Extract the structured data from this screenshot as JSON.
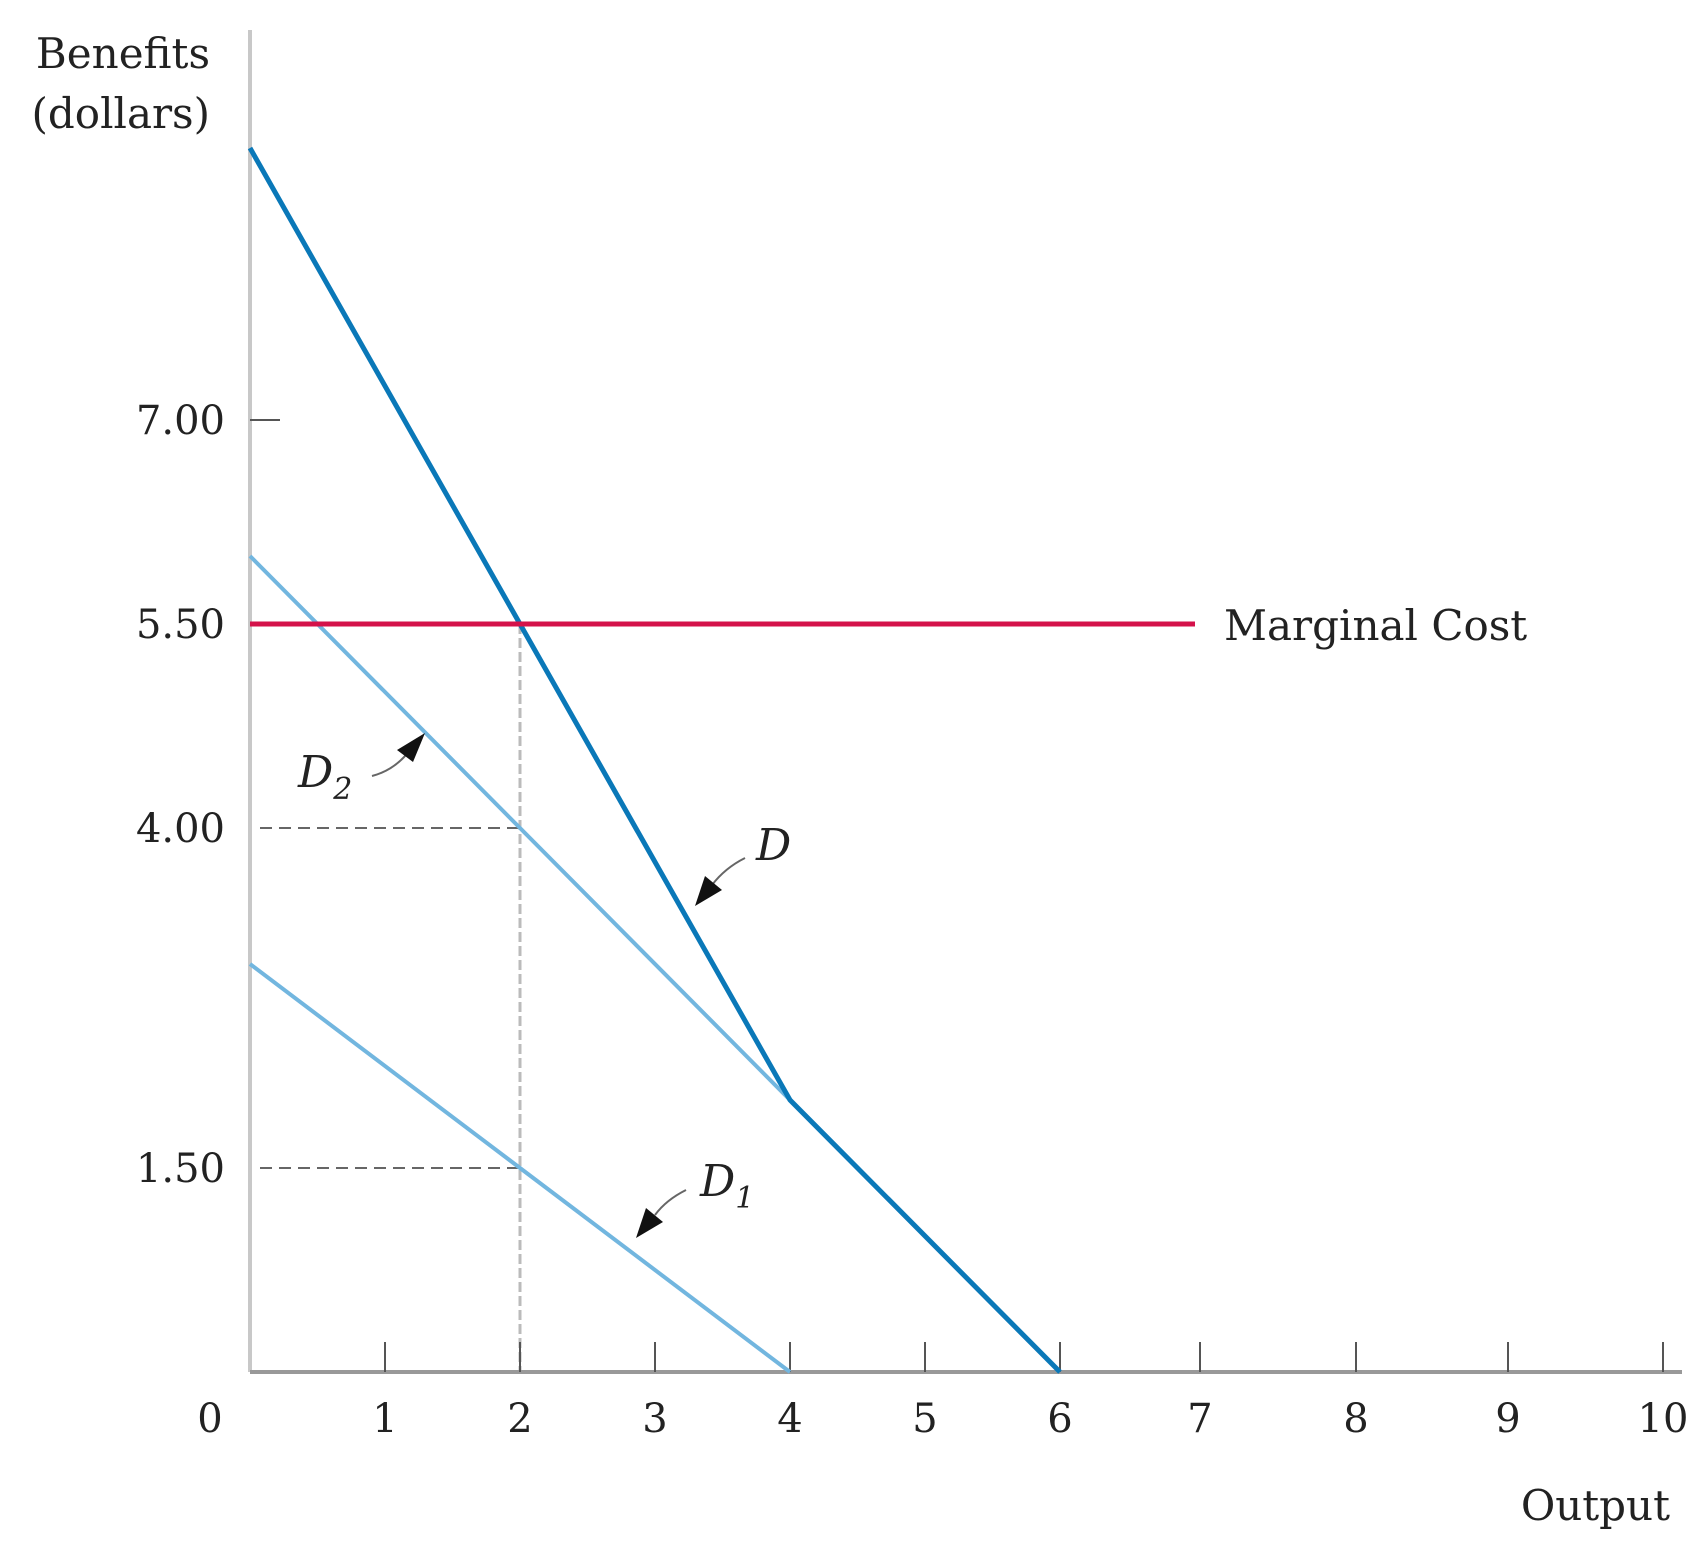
{
  "chart_data": {
    "type": "line",
    "title": "",
    "xlabel": "Output",
    "ylabel_lines": [
      "Benefits",
      "(dollars)"
    ],
    "xlim": [
      0,
      10
    ],
    "ylim": [
      0,
      9.5
    ],
    "x_ticks": [
      "0",
      "1",
      "2",
      "3",
      "4",
      "5",
      "6",
      "7",
      "8",
      "9",
      "10"
    ],
    "y_ticks": [
      {
        "value": 7.0,
        "label": "7.00"
      },
      {
        "value": 5.5,
        "label": "5.50"
      },
      {
        "value": 4.0,
        "label": "4.00"
      },
      {
        "value": 1.5,
        "label": "1.50"
      }
    ],
    "grid": false,
    "series": [
      {
        "name": "D",
        "label": "D",
        "color": "#0a78b8",
        "points": [
          [
            0,
            9
          ],
          [
            4,
            2
          ],
          [
            6,
            0
          ]
        ]
      },
      {
        "name": "D2",
        "label": "D",
        "subscript": "2",
        "color": "#72b6df",
        "points": [
          [
            0,
            6
          ],
          [
            6,
            0
          ]
        ]
      },
      {
        "name": "D1",
        "label": "D",
        "subscript": "1",
        "color": "#72b6df",
        "points": [
          [
            0,
            3
          ],
          [
            4,
            0
          ]
        ]
      },
      {
        "name": "Marginal Cost",
        "label": "Marginal Cost",
        "color": "#d4124a",
        "points": [
          [
            0,
            5.5
          ],
          [
            7,
            5.5
          ]
        ]
      }
    ],
    "reference_lines": [
      {
        "type": "vertical",
        "x": 2,
        "from_y": 0,
        "to_y": 5.5
      },
      {
        "type": "horizontal",
        "y": 4.0,
        "from_x": 0,
        "to_x": 2
      },
      {
        "type": "horizontal",
        "y": 1.5,
        "from_x": 0,
        "to_x": 2
      }
    ]
  }
}
